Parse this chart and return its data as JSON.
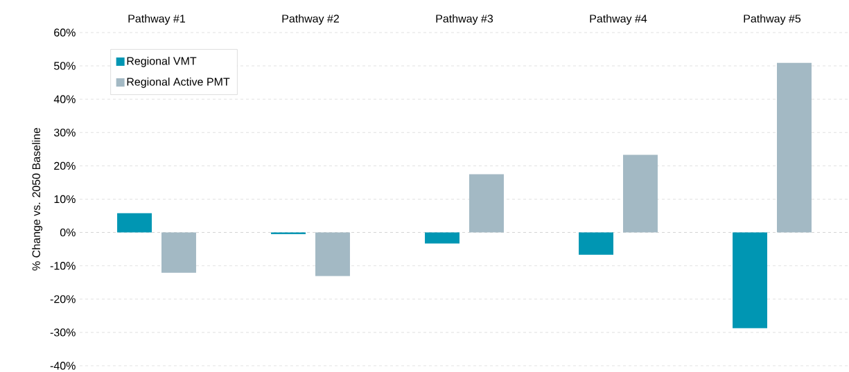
{
  "chart_data": {
    "type": "bar",
    "categories": [
      "Pathway #1",
      "Pathway #2",
      "Pathway #3",
      "Pathway #4",
      "Pathway #5"
    ],
    "ylabel": "% Change vs. 2050 Baseline",
    "series": [
      {
        "name": "Regional VMT",
        "color": "#0096b3",
        "values": [
          5.8,
          -0.5,
          -3.3,
          -6.7,
          -28.7
        ]
      },
      {
        "name": "Regional Active PMT",
        "color": "#a3b9c4",
        "values": [
          -12.1,
          -13.1,
          17.5,
          23.3,
          50.9
        ]
      }
    ],
    "ylim": [
      -40,
      60
    ],
    "yticks": [
      {
        "value": -40,
        "label": "-40%"
      },
      {
        "value": -30,
        "label": "-30%"
      },
      {
        "value": -20,
        "label": "-20%"
      },
      {
        "value": -10,
        "label": "-10%"
      },
      {
        "value": 0,
        "label": "0%"
      },
      {
        "value": 10,
        "label": "10%"
      },
      {
        "value": 20,
        "label": "20%"
      },
      {
        "value": 30,
        "label": "30%"
      },
      {
        "value": 40,
        "label": "40%"
      },
      {
        "value": 50,
        "label": "50%"
      },
      {
        "value": 60,
        "label": "60%"
      }
    ],
    "grid": "y",
    "legend": "top left"
  }
}
